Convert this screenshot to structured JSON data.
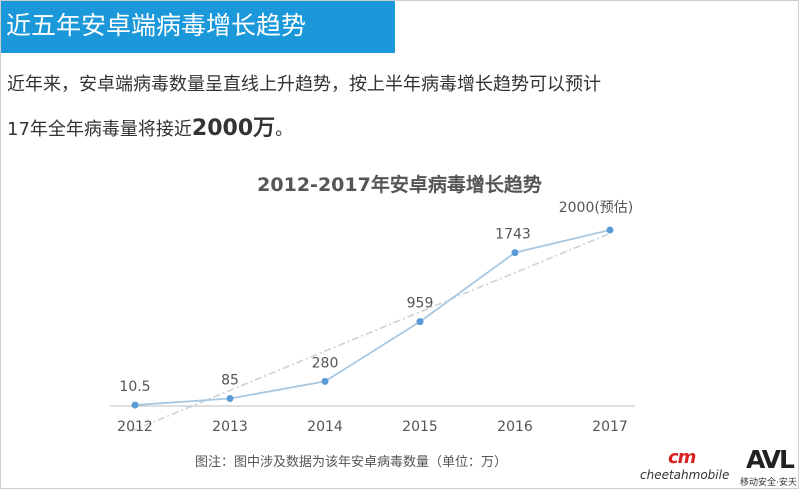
{
  "header": {
    "title": "近五年安卓端病毒增长趋势"
  },
  "paragraph": {
    "line1": "近年来，安卓端病毒数量呈直线上升趋势，按上半年病毒增长趋势可以预计",
    "line2_prefix": "17年全年病毒量将接近",
    "line2_bold": "2000万",
    "line2_suffix": "。"
  },
  "chart_data": {
    "type": "line",
    "title": "2012-2017年安卓病毒增长趋势",
    "categories": [
      "2012",
      "2013",
      "2014",
      "2015",
      "2016",
      "2017"
    ],
    "series": [
      {
        "values": [
          10.5,
          85,
          280,
          959,
          1743,
          2000
        ]
      }
    ],
    "data_labels": [
      "10.5",
      "85",
      "280",
      "959",
      "1743",
      "2000(预估)"
    ],
    "trendline": "linear",
    "ylim": [
      0,
      2200
    ],
    "grid": false,
    "line_color": "#a9c8e0",
    "marker_color": "#5b9bd5",
    "trend_color": "#c8d3dc"
  },
  "note": "图注：图中涉及数据为该年安卓病毒数量（单位：万）",
  "logos": {
    "cheetah_mark": "cm",
    "cheetah_text": "cheetahmobile",
    "av_mark": "AVL",
    "av_text": "移动安全·安天"
  },
  "colors": {
    "header_bg": "#1a98da",
    "header_text": "#ffffff"
  }
}
